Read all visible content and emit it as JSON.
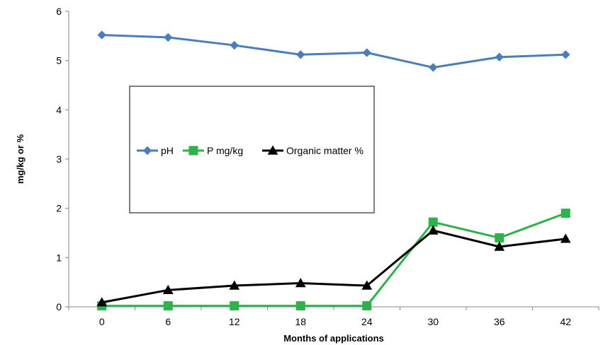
{
  "chart_data": {
    "type": "line",
    "categories": [
      "0",
      "6",
      "12",
      "18",
      "24",
      "30",
      "36",
      "42"
    ],
    "series": [
      {
        "name": "pH",
        "color": "#4a7ebb",
        "marker": "diamond",
        "values": [
          5.52,
          5.47,
          5.31,
          5.12,
          5.16,
          4.86,
          5.07,
          5.12
        ]
      },
      {
        "name": "P mg/kg",
        "color": "#2db34a",
        "marker": "square",
        "values": [
          0.02,
          0.02,
          0.02,
          0.02,
          0.02,
          1.72,
          1.4,
          1.9
        ]
      },
      {
        "name": "Organic matter %",
        "color": "#000000",
        "marker": "triangle",
        "values": [
          0.09,
          0.34,
          0.43,
          0.48,
          0.43,
          1.55,
          1.22,
          1.38
        ]
      }
    ],
    "xlabel": "Months of applications",
    "ylabel": "mg/kg or %",
    "ylim": [
      0,
      6
    ],
    "yticks": [
      "0",
      "1",
      "2",
      "3",
      "4",
      "5",
      "6"
    ],
    "grid": false,
    "legend_position": "left-middle (boxed)"
  }
}
